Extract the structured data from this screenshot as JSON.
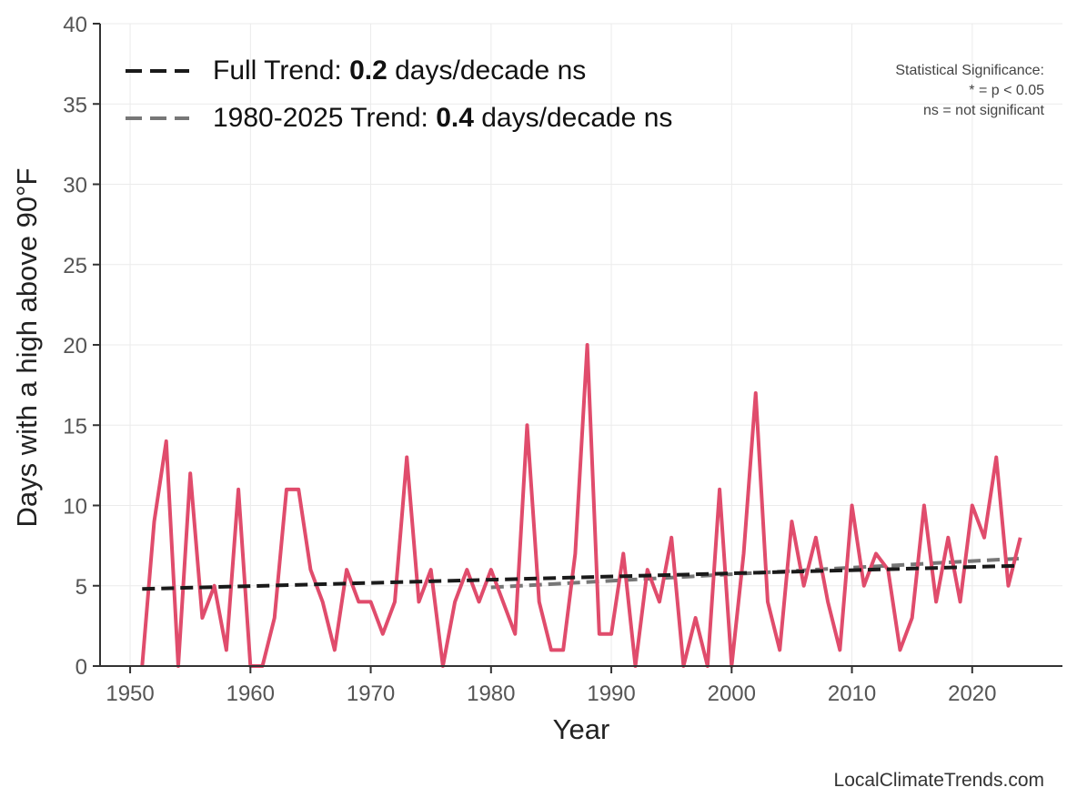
{
  "chart_data": {
    "type": "line",
    "xlabel": "Year",
    "ylabel": "Days with a high above 90°F",
    "xlim": [
      1947.5,
      2027.5
    ],
    "ylim": [
      0,
      40
    ],
    "x_ticks": [
      1950,
      1960,
      1970,
      1980,
      1990,
      2000,
      2010,
      2020
    ],
    "y_ticks": [
      0,
      5,
      10,
      15,
      20,
      25,
      30,
      35,
      40
    ],
    "grid": true,
    "legend_position": "top-left",
    "series": [
      {
        "color": "#E04C6C",
        "x": [
          1951,
          1952,
          1953,
          1954,
          1955,
          1956,
          1957,
          1958,
          1959,
          1960,
          1961,
          1962,
          1963,
          1964,
          1965,
          1966,
          1967,
          1968,
          1969,
          1970,
          1971,
          1972,
          1973,
          1974,
          1975,
          1976,
          1977,
          1978,
          1979,
          1980,
          1981,
          1982,
          1983,
          1984,
          1985,
          1986,
          1987,
          1988,
          1989,
          1990,
          1991,
          1992,
          1993,
          1994,
          1995,
          1996,
          1997,
          1998,
          1999,
          2000,
          2001,
          2002,
          2003,
          2004,
          2005,
          2006,
          2007,
          2008,
          2009,
          2010,
          2011,
          2012,
          2013,
          2014,
          2015,
          2016,
          2017,
          2018,
          2019,
          2020,
          2021,
          2022,
          2023,
          2024
        ],
        "y": [
          0,
          9,
          14,
          0,
          12,
          3,
          5,
          1,
          11,
          0,
          0,
          3,
          11,
          11,
          6,
          4,
          1,
          6,
          4,
          4,
          2,
          4,
          13,
          4,
          6,
          0,
          4,
          6,
          4,
          6,
          4,
          2,
          15,
          4,
          1,
          1,
          7,
          20,
          2,
          2,
          7,
          0,
          6,
          4,
          8,
          0,
          3,
          0,
          11,
          0,
          7,
          17,
          4,
          1,
          9,
          5,
          8,
          4,
          1,
          10,
          5,
          7,
          6,
          1,
          3,
          10,
          4,
          8,
          4,
          10,
          8,
          13,
          5,
          8
        ]
      }
    ],
    "trend_lines": [
      {
        "label": "Full Trend: ",
        "value": "0.2",
        "suffix": " days/decade ns",
        "color": "#1a1a1a",
        "x": [
          1951,
          2024
        ],
        "y": [
          4.8,
          6.25
        ]
      },
      {
        "label": "1980-2025 Trend: ",
        "value": "0.4",
        "suffix": " days/decade ns",
        "color": "#777777",
        "x": [
          1980,
          2024
        ],
        "y": [
          4.9,
          6.7
        ]
      }
    ],
    "significance_note": [
      "Statistical Significance:",
      "* = p < 0.05",
      "ns = not significant"
    ],
    "source": "LocalClimateTrends.com"
  }
}
